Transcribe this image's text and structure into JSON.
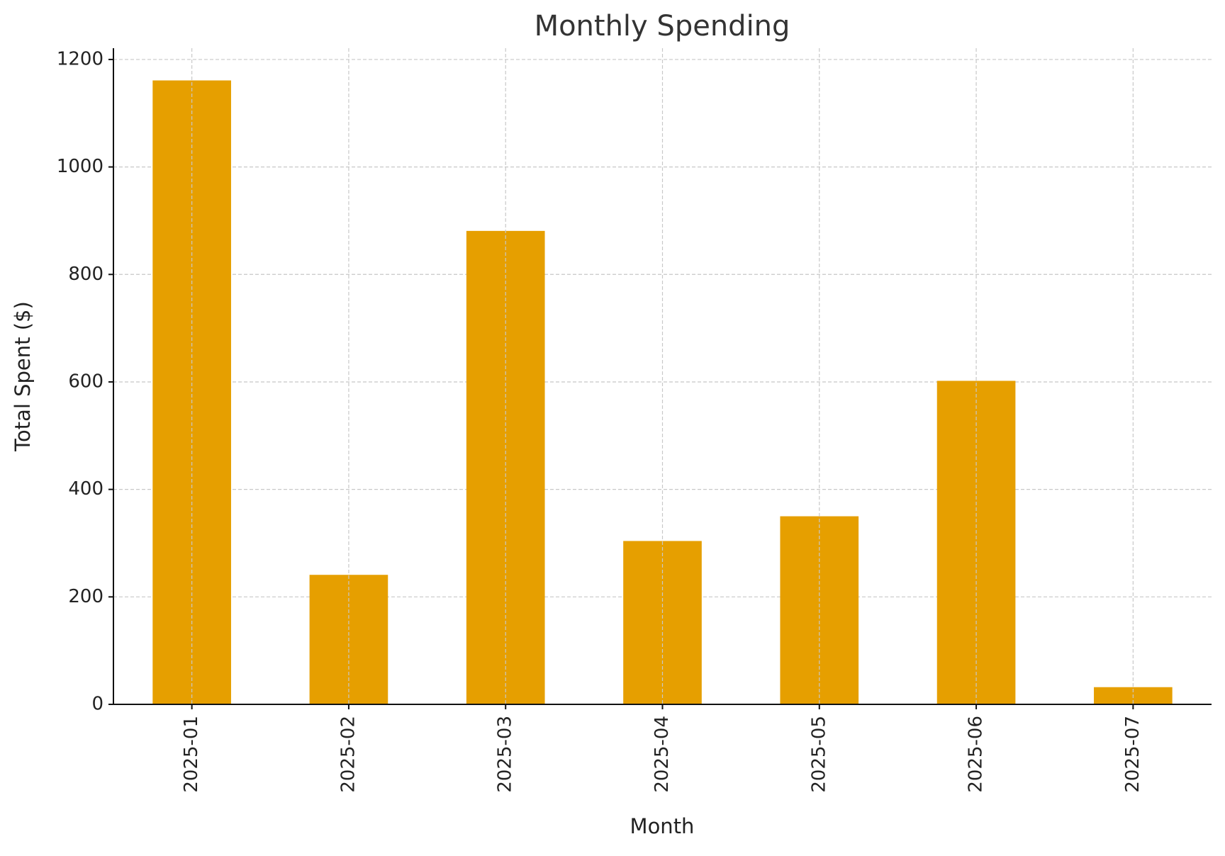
{
  "chart_data": {
    "type": "bar",
    "title": "Monthly Spending",
    "x_label": "Month",
    "y_label": "Total Spent ($)",
    "categories": [
      "2025-01",
      "2025-02",
      "2025-03",
      "2025-04",
      "2025-05",
      "2025-06",
      "2025-07"
    ],
    "values": [
      1161,
      241,
      881,
      304,
      350,
      602,
      32
    ],
    "color": "#e69f00",
    "ylim": [
      0,
      1221
    ],
    "yticks": [
      0,
      200,
      400,
      600,
      800,
      1000,
      1200
    ],
    "grid": true
  }
}
